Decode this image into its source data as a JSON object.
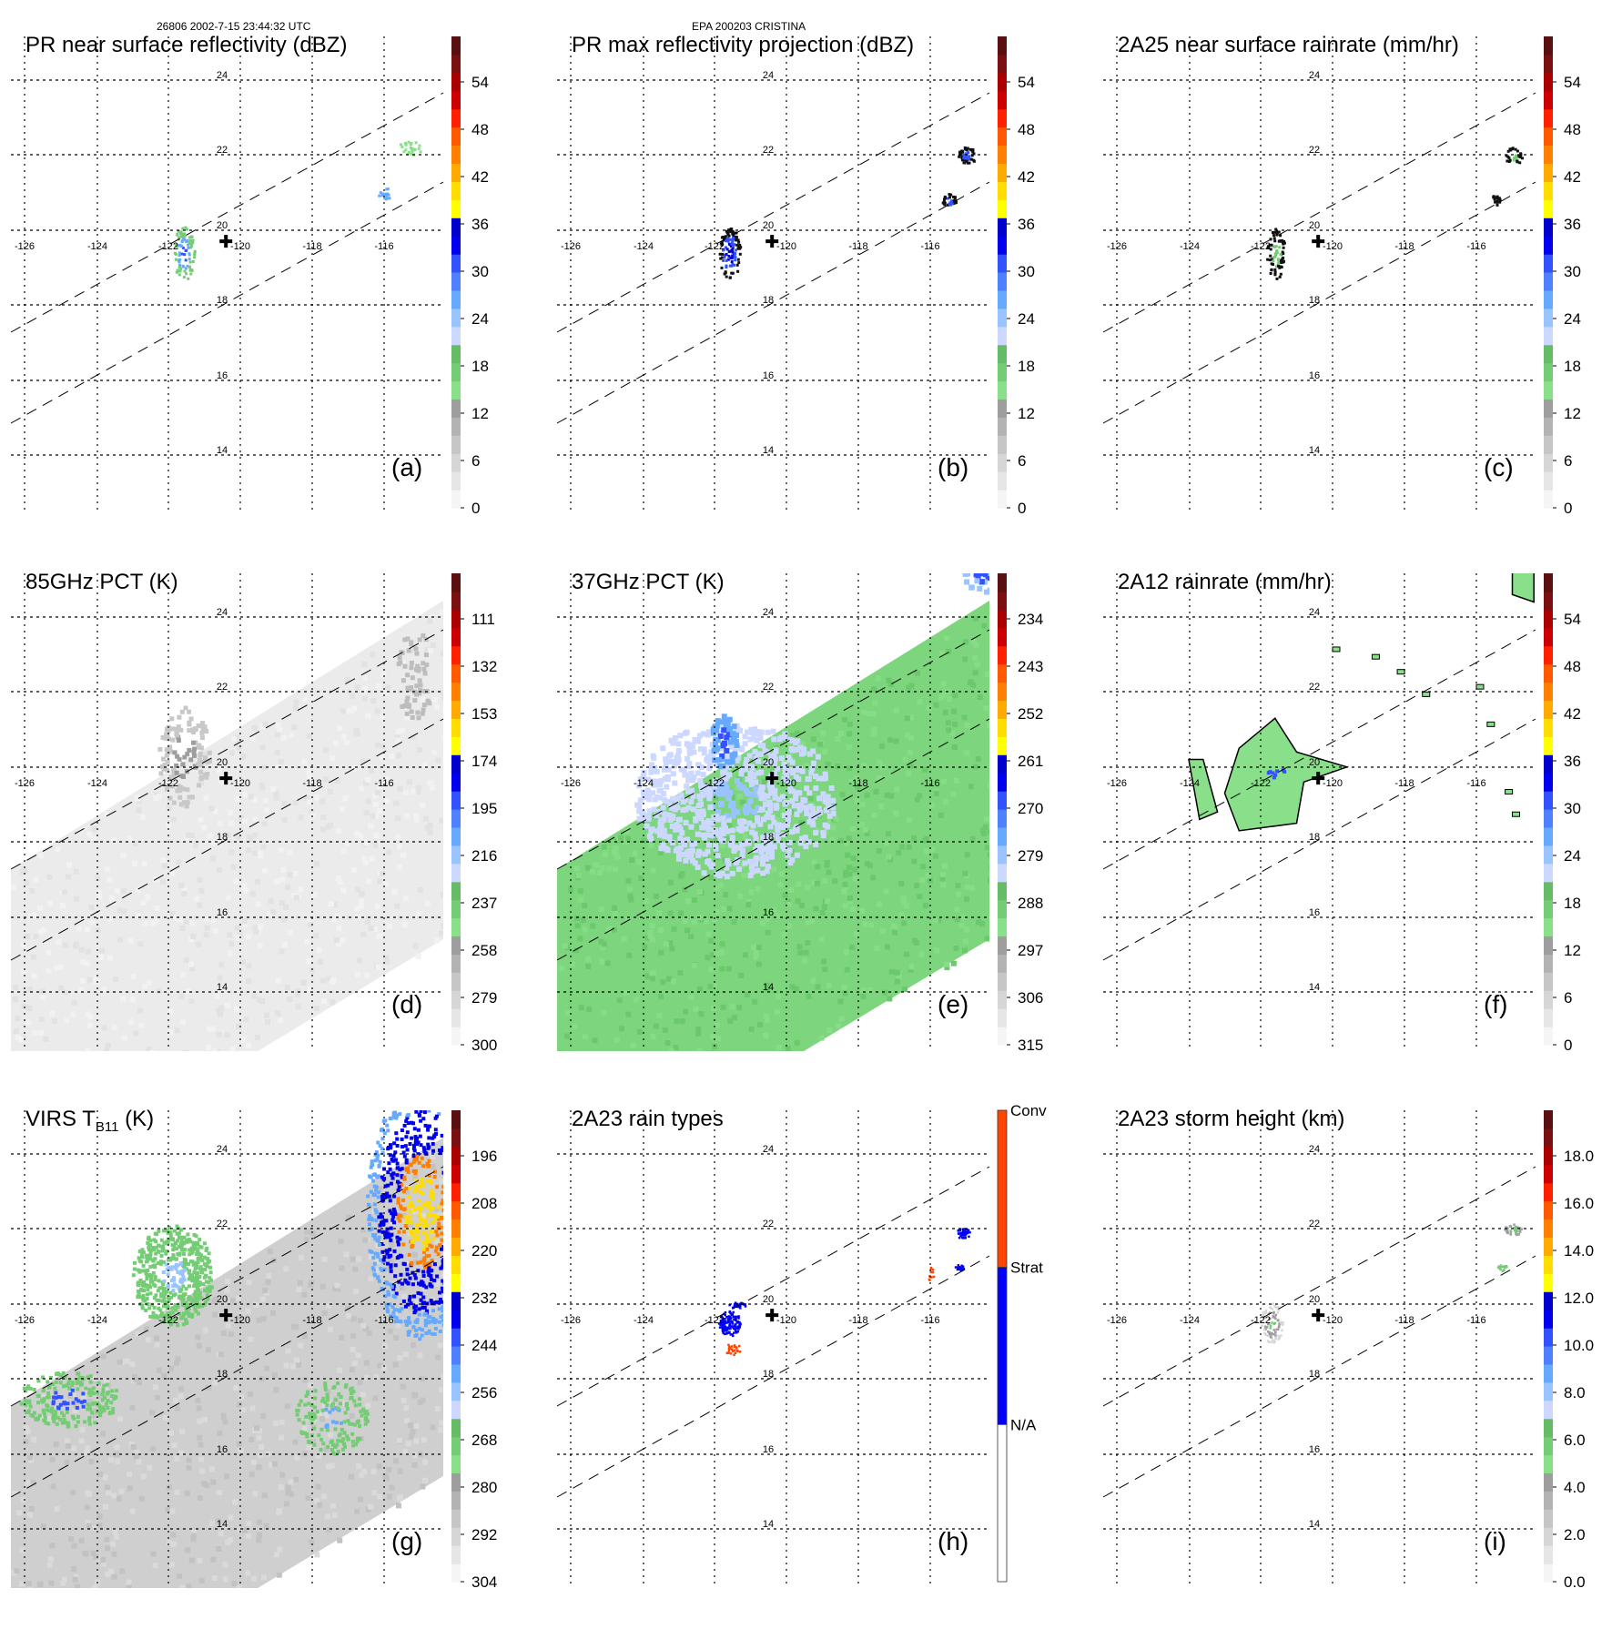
{
  "header": {
    "left": "26806 2002-7-15 23:44:32 UTC",
    "center": "EPA 200203 CRISTINA"
  },
  "map": {
    "lon_labels": [
      "-126",
      "-124",
      "-122",
      "-120",
      "-118",
      "-116"
    ],
    "lat_labels": [
      "24",
      "22",
      "20",
      "18",
      "16",
      "14"
    ],
    "lon_range": [
      -126.4,
      -114.4
    ],
    "lat_range": [
      13.6,
      25.9
    ],
    "storm_center": {
      "lon": -120.4,
      "lat": 19.7,
      "marker": "plus-icon"
    }
  },
  "colors": {
    "scale": [
      "#f5f5f5",
      "#e6e6e6",
      "#d6d6d6",
      "#c6c6c6",
      "#b3b3b3",
      "#9e9e9e",
      "#8ae08a",
      "#74cc74",
      "#66bb66",
      "#ccd8ff",
      "#99c4ff",
      "#66aaff",
      "#4f80ff",
      "#3352ff",
      "#0000ee",
      "#0000cc",
      "#ffff00",
      "#ffdd00",
      "#ffaa00",
      "#ff8000",
      "#ff5a00",
      "#ff2000",
      "#cc0000",
      "#aa0000",
      "#7a1010",
      "#5a1010"
    ],
    "raintype": {
      "conv": "#ff4500",
      "strat": "#0000ff",
      "na": "#ffffff"
    }
  },
  "chart_data": [
    {
      "id": "a",
      "type": "heatmap",
      "panel_label": "(a)",
      "title": "PR near surface reflectivity (dBZ)",
      "colorbar": {
        "ticks": [
          "54",
          "48",
          "42",
          "36",
          "30",
          "24",
          "18",
          "12",
          "6",
          "0"
        ],
        "range": [
          0,
          60
        ],
        "unit": "dBZ"
      },
      "features": "sparse PR echoes near (-121.5,19.5) and (-115.5,21.5)"
    },
    {
      "id": "b",
      "type": "heatmap",
      "panel_label": "(b)",
      "title": "PR max reflectivity projection (dBZ)",
      "colorbar": {
        "ticks": [
          "54",
          "48",
          "42",
          "36",
          "30",
          "24",
          "18",
          "12",
          "6",
          "0"
        ],
        "range": [
          0,
          60
        ],
        "unit": "dBZ"
      },
      "features": "contoured echoes near (-121.5,19.5) and (-115.2,22)"
    },
    {
      "id": "c",
      "type": "heatmap",
      "panel_label": "(c)",
      "title": "2A25 near surface rainrate (mm/hr)",
      "colorbar": {
        "ticks": [
          "54",
          "48",
          "42",
          "36",
          "30",
          "24",
          "18",
          "12",
          "6",
          "0"
        ],
        "range": [
          0,
          60
        ],
        "unit": "mm/hr"
      },
      "features": "light rain (0-6 mm/hr) near (-121.5,19.5) and (-115.2,22)"
    },
    {
      "id": "d",
      "type": "heatmap",
      "panel_label": "(d)",
      "title": "85GHz PCT (K)",
      "colorbar": {
        "ticks": [
          "111",
          "132",
          "153",
          "174",
          "195",
          "216",
          "237",
          "258",
          "279",
          "300"
        ],
        "range": [
          300,
          90
        ],
        "unit": "K"
      },
      "features": "mostly 280-300 K across swath"
    },
    {
      "id": "e",
      "type": "heatmap",
      "panel_label": "(e)",
      "title": "37GHz PCT (K)",
      "colorbar": {
        "ticks": [
          "234",
          "243",
          "252",
          "261",
          "270",
          "279",
          "288",
          "297",
          "306",
          "315"
        ],
        "range": [
          315,
          225
        ],
        "unit": "K"
      },
      "features": "swath mostly 285-295 K; depressed 275-285 K region around (-121.5,19)"
    },
    {
      "id": "f",
      "type": "heatmap",
      "panel_label": "(f)",
      "title": "2A12 rainrate (mm/hr)",
      "colorbar": {
        "ticks": [
          "54",
          "48",
          "42",
          "36",
          "30",
          "24",
          "18",
          "12",
          "6",
          "0"
        ],
        "range": [
          0,
          60
        ],
        "unit": "mm/hr"
      },
      "features": "light rain region 0-6 mm/hr centered near (-121.8,19.5)"
    },
    {
      "id": "g",
      "type": "heatmap",
      "panel_label": "(g)",
      "title": "VIRS T",
      "title_sub": "B11",
      "title_suffix": " (K)",
      "colorbar": {
        "ticks": [
          "196",
          "208",
          "220",
          "232",
          "244",
          "256",
          "268",
          "280",
          "292",
          "304"
        ],
        "range": [
          304,
          184
        ],
        "unit": "K"
      },
      "features": "cold cloud tops (<232 K) in NE of swath; cloud band near (-122,20.5)"
    },
    {
      "id": "h",
      "type": "heatmap",
      "panel_label": "(h)",
      "title": "2A23 rain types",
      "colorbar": {
        "categorical": true,
        "labels": [
          "Conv",
          "Strat",
          "N/A"
        ]
      },
      "features": "stratiform near (-121.6,19.5) and (-115.3,22); convective bits near (-121.5,18.8)"
    },
    {
      "id": "i",
      "type": "heatmap",
      "panel_label": "(i)",
      "title": "2A23 storm height (km)",
      "colorbar": {
        "ticks": [
          "18.0",
          "16.0",
          "14.0",
          "12.0",
          "10.0",
          "8.0",
          "6.0",
          "4.0",
          "2.0",
          "0.0"
        ],
        "range": [
          0,
          20
        ],
        "unit": "km"
      },
      "features": "storm heights mostly 2-7 km"
    }
  ]
}
